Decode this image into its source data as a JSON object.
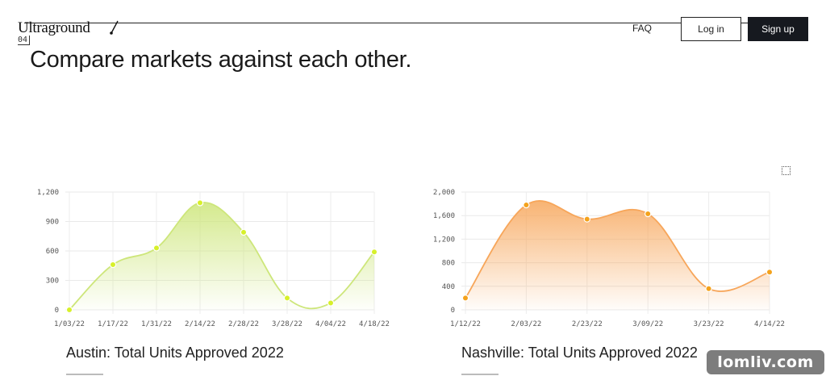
{
  "header": {
    "logo_text": "Ultraground",
    "logo_sub": "04",
    "faq_label": "FAQ",
    "login_label": "Log in",
    "signup_label": "Sign up"
  },
  "main": {
    "headline": "Compare markets against each other.",
    "expand_icon": "expand-icon"
  },
  "colors": {
    "austin_line": "#cde67a",
    "austin_point": "#d7f02a",
    "nashville_line": "#f7a65a",
    "nashville_point": "#f4a21c",
    "signup_bg": "#16191f"
  },
  "watermark": "lomliv.com",
  "chart_data": [
    {
      "type": "area",
      "title": "Austin: Total Units Approved 2022",
      "x": [
        "1/03/22",
        "1/17/22",
        "1/31/22",
        "2/14/22",
        "2/28/22",
        "3/28/22",
        "4/04/22",
        "4/18/22"
      ],
      "values": [
        0,
        460,
        630,
        1090,
        790,
        120,
        70,
        590
      ],
      "yticks": [
        "0",
        "300",
        "600",
        "900",
        "1,200"
      ],
      "ylim": [
        0,
        1200
      ],
      "grid": true
    },
    {
      "type": "area",
      "title": "Nashville: Total Units Approved 2022",
      "x": [
        "1/12/22",
        "2/03/22",
        "2/23/22",
        "3/09/22",
        "3/23/22",
        "4/14/22"
      ],
      "values": [
        200,
        1780,
        1540,
        1630,
        360,
        640
      ],
      "yticks": [
        "0",
        "400",
        "800",
        "1,200",
        "1,600",
        "2,000"
      ],
      "ylim": [
        0,
        2000
      ],
      "grid": true
    }
  ]
}
